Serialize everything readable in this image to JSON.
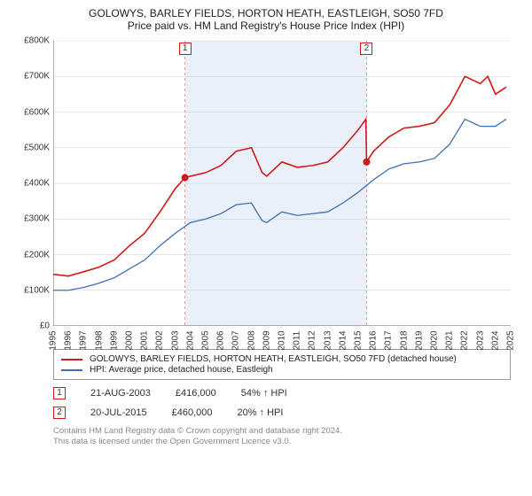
{
  "title_line1": "GOLOWYS, BARLEY FIELDS, HORTON HEATH, EASTLEIGH, SO50 7FD",
  "title_line2": "Price paid vs. HM Land Registry's House Price Index (HPI)",
  "chart": {
    "type": "line",
    "background_color": "#ffffff",
    "shaded_band_color": "#eaf0fa",
    "grid_color": "#cccccc",
    "axis_color": "#666666",
    "xlim": [
      1995,
      2025
    ],
    "ylim": [
      0,
      800000
    ],
    "ytick_step": 100000,
    "yticks": [
      "£0",
      "£100K",
      "£200K",
      "£300K",
      "£400K",
      "£500K",
      "£600K",
      "£700K",
      "£800K"
    ],
    "xticks": [
      1995,
      1996,
      1997,
      1998,
      1999,
      2000,
      2001,
      2002,
      2003,
      2004,
      2005,
      2006,
      2007,
      2008,
      2009,
      2010,
      2011,
      2012,
      2013,
      2014,
      2015,
      2016,
      2017,
      2018,
      2019,
      2020,
      2021,
      2022,
      2023,
      2024,
      2025
    ],
    "shaded_x": [
      2003.64,
      2015.55
    ],
    "series": [
      {
        "name": "price_paid",
        "label": "GOLOWYS, BARLEY FIELDS, HORTON HEATH, EASTLEIGH, SO50 7FD (detached house)",
        "color": "#d11919",
        "width": 1.6,
        "points": [
          [
            1995,
            145000
          ],
          [
            1996,
            140000
          ],
          [
            1997,
            152000
          ],
          [
            1998,
            165000
          ],
          [
            1999,
            185000
          ],
          [
            2000,
            225000
          ],
          [
            2001,
            260000
          ],
          [
            2002,
            320000
          ],
          [
            2003,
            385000
          ],
          [
            2003.64,
            416000
          ],
          [
            2004,
            420000
          ],
          [
            2005,
            430000
          ],
          [
            2006,
            450000
          ],
          [
            2007,
            490000
          ],
          [
            2008,
            500000
          ],
          [
            2008.7,
            430000
          ],
          [
            2009,
            420000
          ],
          [
            2010,
            460000
          ],
          [
            2011,
            445000
          ],
          [
            2012,
            450000
          ],
          [
            2013,
            460000
          ],
          [
            2014,
            500000
          ],
          [
            2015,
            550000
          ],
          [
            2015.5,
            580000
          ],
          [
            2015.55,
            460000
          ],
          [
            2016,
            490000
          ],
          [
            2017,
            530000
          ],
          [
            2018,
            555000
          ],
          [
            2019,
            560000
          ],
          [
            2020,
            570000
          ],
          [
            2021,
            620000
          ],
          [
            2022,
            700000
          ],
          [
            2023,
            680000
          ],
          [
            2023.5,
            700000
          ],
          [
            2024,
            650000
          ],
          [
            2024.7,
            670000
          ]
        ]
      },
      {
        "name": "hpi",
        "label": "HPI: Average price, detached house, Eastleigh",
        "color": "#3b6fb6",
        "width": 1.3,
        "points": [
          [
            1995,
            100000
          ],
          [
            1996,
            100000
          ],
          [
            1997,
            108000
          ],
          [
            1998,
            120000
          ],
          [
            1999,
            135000
          ],
          [
            2000,
            160000
          ],
          [
            2001,
            185000
          ],
          [
            2002,
            225000
          ],
          [
            2003,
            260000
          ],
          [
            2004,
            290000
          ],
          [
            2005,
            300000
          ],
          [
            2006,
            315000
          ],
          [
            2007,
            340000
          ],
          [
            2008,
            345000
          ],
          [
            2008.7,
            295000
          ],
          [
            2009,
            290000
          ],
          [
            2010,
            320000
          ],
          [
            2011,
            310000
          ],
          [
            2012,
            315000
          ],
          [
            2013,
            320000
          ],
          [
            2014,
            345000
          ],
          [
            2015,
            375000
          ],
          [
            2016,
            410000
          ],
          [
            2017,
            440000
          ],
          [
            2018,
            455000
          ],
          [
            2019,
            460000
          ],
          [
            2020,
            470000
          ],
          [
            2021,
            510000
          ],
          [
            2022,
            580000
          ],
          [
            2023,
            560000
          ],
          [
            2024,
            560000
          ],
          [
            2024.7,
            580000
          ]
        ]
      }
    ],
    "markers": [
      {
        "n": "1",
        "x": 2003.64,
        "y": 416000,
        "color": "#d11919"
      },
      {
        "n": "2",
        "x": 2015.55,
        "y": 460000,
        "color": "#d11919"
      }
    ],
    "marker_line_color": "#e89090"
  },
  "legend": {
    "items": [
      {
        "color": "#d11919",
        "label": "GOLOWYS, BARLEY FIELDS, HORTON HEATH, EASTLEIGH, SO50 7FD (detached house)"
      },
      {
        "color": "#3b6fb6",
        "label": "HPI: Average price, detached house, Eastleigh"
      }
    ]
  },
  "sales": [
    {
      "n": "1",
      "color": "#d11919",
      "date": "21-AUG-2003",
      "price": "£416,000",
      "delta": "54% ↑ HPI"
    },
    {
      "n": "2",
      "color": "#d11919",
      "date": "20-JUL-2015",
      "price": "£460,000",
      "delta": "20% ↑ HPI"
    }
  ],
  "footer_line1": "Contains HM Land Registry data © Crown copyright and database right 2024.",
  "footer_line2": "This data is licensed under the Open Government Licence v3.0."
}
